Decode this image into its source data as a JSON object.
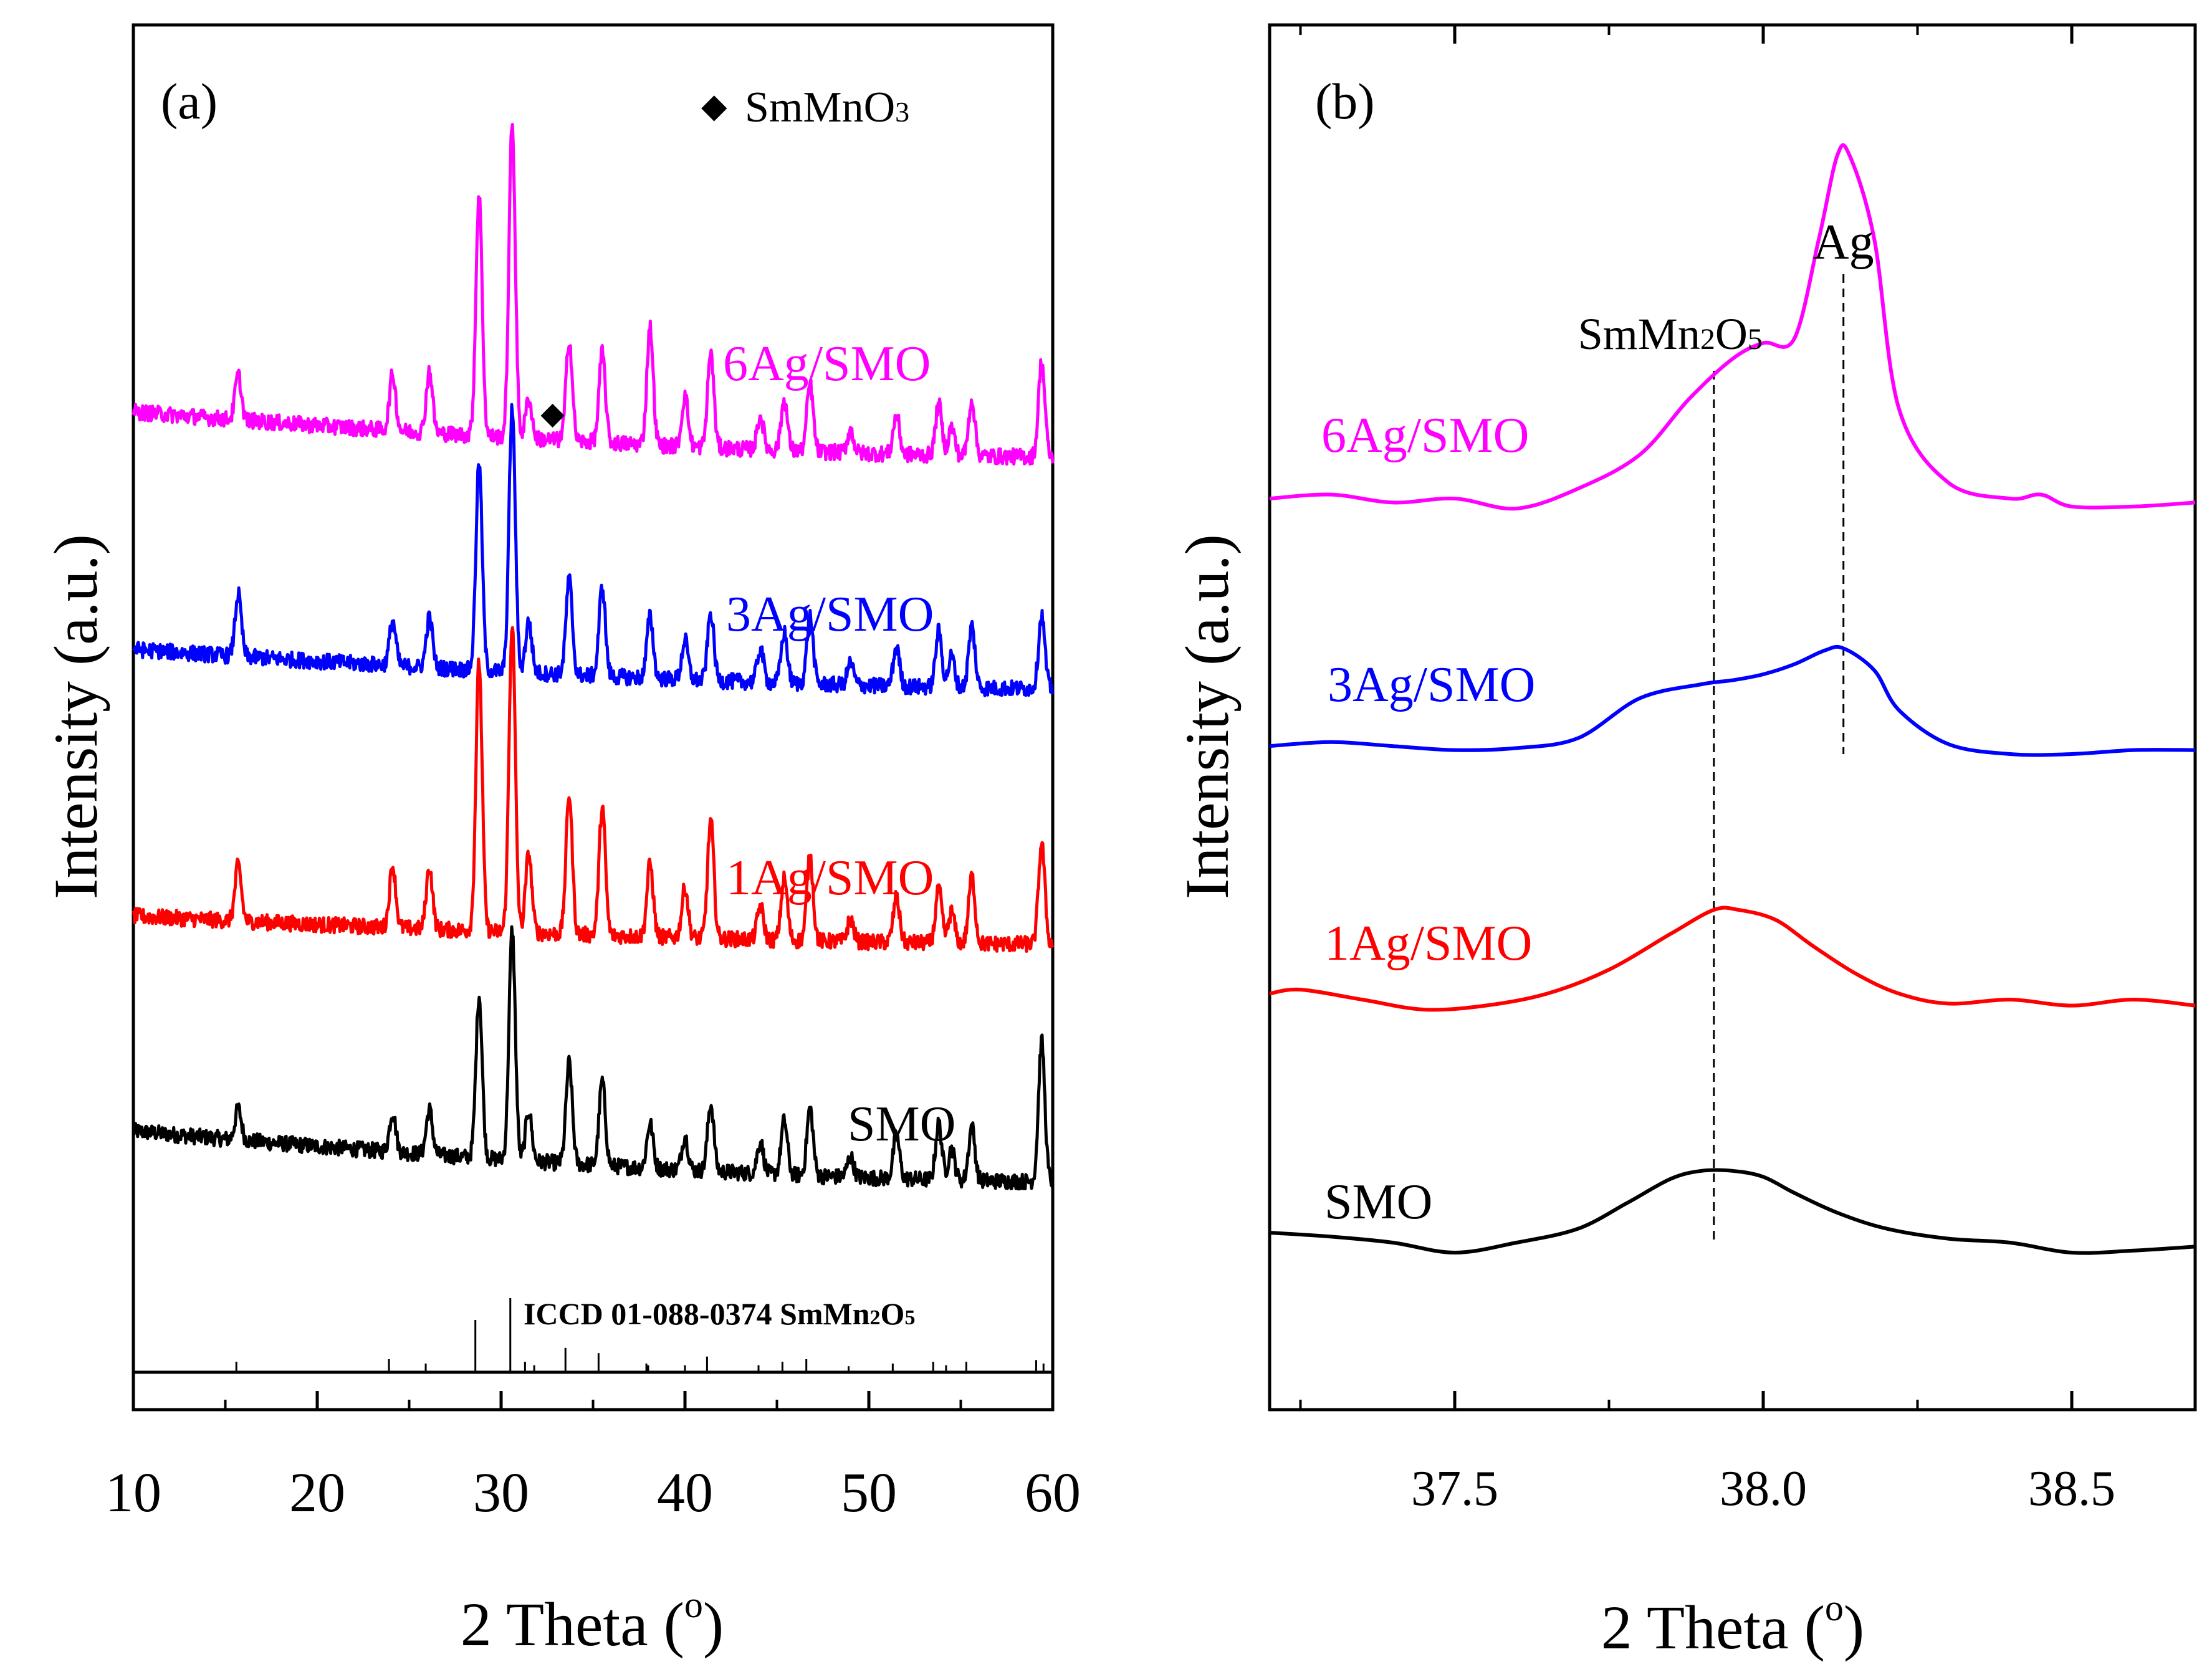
{
  "chart_data": [
    {
      "panel": "(a)",
      "type": "line",
      "title": "",
      "xlabel": "2 Theta (o)",
      "xlabel_main": "2 Theta (",
      "xlabel_sup": "o",
      "xlabel_close": ")",
      "ylabel": "Intensity (a.u.)",
      "xlim": [
        10,
        60
      ],
      "xticks": [
        "10",
        "20",
        "30",
        "40",
        "50",
        "60"
      ],
      "xtick_values": [
        10,
        20,
        30,
        40,
        50,
        60
      ],
      "legend": {
        "marker": "◆",
        "label_main": "SmMnO",
        "label_sub": "3",
        "placement": "top-right"
      },
      "marker_annotation": {
        "symbol": "◆",
        "x": 32.8
      },
      "reference": {
        "label": "ICCD 01-088-0374 SmMn2O5",
        "label_main": "ICCD 01-088-0374 SmMn",
        "label_sub1": "2",
        "label_o": "O",
        "label_sub2": "5",
        "sticks": [
          {
            "x": 15.6,
            "h": 0.12
          },
          {
            "x": 23.9,
            "h": 0.15
          },
          {
            "x": 25.9,
            "h": 0.1
          },
          {
            "x": 28.6,
            "h": 0.6
          },
          {
            "x": 30.5,
            "h": 0.85
          },
          {
            "x": 31.3,
            "h": 0.12
          },
          {
            "x": 31.8,
            "h": 0.08
          },
          {
            "x": 33.5,
            "h": 0.28
          },
          {
            "x": 35.3,
            "h": 0.22
          },
          {
            "x": 37.9,
            "h": 0.1
          },
          {
            "x": 38.0,
            "h": 0.08
          },
          {
            "x": 40.0,
            "h": 0.08
          },
          {
            "x": 41.2,
            "h": 0.18
          },
          {
            "x": 44.0,
            "h": 0.08
          },
          {
            "x": 45.3,
            "h": 0.12
          },
          {
            "x": 46.6,
            "h": 0.15
          },
          {
            "x": 48.9,
            "h": 0.07
          },
          {
            "x": 51.3,
            "h": 0.1
          },
          {
            "x": 53.5,
            "h": 0.12
          },
          {
            "x": 54.2,
            "h": 0.08
          },
          {
            "x": 55.3,
            "h": 0.12
          },
          {
            "x": 59.1,
            "h": 0.14
          },
          {
            "x": 59.5,
            "h": 0.1
          }
        ]
      },
      "peak_positions": [
        15.7,
        24.1,
        26.1,
        28.8,
        30.6,
        31.5,
        33.7,
        35.5,
        38.1,
        40.0,
        41.4,
        44.1,
        45.4,
        46.8,
        49.0,
        51.5,
        53.8,
        54.5,
        55.6,
        59.4
      ],
      "series": [
        {
          "name": "SMO",
          "color": "#000000",
          "baseline_start": 0.75,
          "baseline_end": 0.3,
          "noise": 0.14,
          "peak_heights": [
            0.28,
            0.35,
            0.4,
            1.45,
            2.05,
            0.45,
            0.9,
            0.75,
            0.4,
            0.3,
            0.6,
            0.28,
            0.48,
            0.6,
            0.18,
            0.38,
            0.5,
            0.28,
            0.48,
            1.25
          ]
        },
        {
          "name": "1Ag/SMO",
          "color": "#ff0000",
          "baseline_start": 0.5,
          "baseline_end": 0.25,
          "noise": 0.14,
          "peak_heights": [
            0.5,
            0.55,
            0.55,
            2.4,
            2.75,
            0.7,
            1.25,
            1.15,
            0.65,
            0.45,
            1.05,
            0.3,
            0.55,
            0.75,
            0.2,
            0.4,
            0.48,
            0.28,
            0.6,
            0.9
          ]
        },
        {
          "name": "3Ag/SMO",
          "color": "#0000ff",
          "baseline_start": 0.6,
          "baseline_end": 0.25,
          "noise": 0.14,
          "peak_heights": [
            0.55,
            0.4,
            0.45,
            1.85,
            2.35,
            0.45,
            0.85,
            0.8,
            0.55,
            0.35,
            0.6,
            0.3,
            0.45,
            0.6,
            0.2,
            0.35,
            0.5,
            0.28,
            0.55,
            0.65
          ]
        },
        {
          "name": "6Ag/SMO",
          "color": "#ff00ff",
          "baseline_start": 0.55,
          "baseline_end": 0.15,
          "noise": 0.14,
          "peak_heights": [
            0.4,
            0.5,
            0.55,
            2.15,
            2.8,
            0.35,
            0.9,
            0.8,
            1.05,
            0.45,
            0.85,
            0.3,
            0.45,
            0.6,
            0.2,
            0.35,
            0.45,
            0.25,
            0.5,
            0.85
          ]
        }
      ]
    },
    {
      "panel": "(b)",
      "type": "line",
      "title": "",
      "xlabel": "2 Theta (o)",
      "xlabel_main": "2 Theta (",
      "xlabel_sup": "o",
      "xlabel_close": ")",
      "ylabel": "Intensity (a.u.)",
      "xlim": [
        37.2,
        38.7
      ],
      "xticks": [
        "37.5",
        "38.0",
        "38.5"
      ],
      "xtick_values": [
        37.5,
        38.0,
        38.5
      ],
      "minor_xticks": [
        37.25,
        37.75,
        38.25
      ],
      "annotations": [
        {
          "label": "SmMn2O5",
          "label_main": "SmMn",
          "label_sub1": "2",
          "label_o": "O",
          "label_sub2": "5",
          "x": 37.92
        },
        {
          "label": "Ag",
          "x": 38.13
        }
      ],
      "series": [
        {
          "name": "SMO",
          "color": "#000000",
          "points": [
            [
              37.2,
              0.1
            ],
            [
              37.3,
              0.08
            ],
            [
              37.4,
              0.05
            ],
            [
              37.5,
              0.0
            ],
            [
              37.6,
              0.05
            ],
            [
              37.7,
              0.12
            ],
            [
              37.78,
              0.25
            ],
            [
              37.85,
              0.37
            ],
            [
              37.9,
              0.41
            ],
            [
              37.95,
              0.41
            ],
            [
              38.0,
              0.38
            ],
            [
              38.05,
              0.3
            ],
            [
              38.12,
              0.2
            ],
            [
              38.2,
              0.12
            ],
            [
              38.3,
              0.07
            ],
            [
              38.4,
              0.05
            ],
            [
              38.5,
              0.0
            ],
            [
              38.6,
              0.01
            ],
            [
              38.7,
              0.03
            ]
          ]
        },
        {
          "name": "1Ag/SMO",
          "color": "#ff0000",
          "points": [
            [
              37.2,
              0.08
            ],
            [
              37.25,
              0.1
            ],
            [
              37.35,
              0.05
            ],
            [
              37.45,
              0.0
            ],
            [
              37.55,
              0.02
            ],
            [
              37.65,
              0.08
            ],
            [
              37.75,
              0.2
            ],
            [
              37.85,
              0.38
            ],
            [
              37.92,
              0.5
            ],
            [
              37.96,
              0.5
            ],
            [
              38.02,
              0.45
            ],
            [
              38.08,
              0.32
            ],
            [
              38.15,
              0.18
            ],
            [
              38.22,
              0.08
            ],
            [
              38.3,
              0.03
            ],
            [
              38.4,
              0.05
            ],
            [
              38.5,
              0.02
            ],
            [
              38.6,
              0.05
            ],
            [
              38.7,
              0.02
            ]
          ]
        },
        {
          "name": "3Ag/SMO",
          "color": "#0000ff",
          "points": [
            [
              37.2,
              0.04
            ],
            [
              37.3,
              0.06
            ],
            [
              37.4,
              0.04
            ],
            [
              37.5,
              0.02
            ],
            [
              37.6,
              0.03
            ],
            [
              37.7,
              0.08
            ],
            [
              37.8,
              0.28
            ],
            [
              37.9,
              0.35
            ],
            [
              37.95,
              0.37
            ],
            [
              38.0,
              0.4
            ],
            [
              38.05,
              0.45
            ],
            [
              38.1,
              0.52
            ],
            [
              38.13,
              0.53
            ],
            [
              38.18,
              0.42
            ],
            [
              38.22,
              0.22
            ],
            [
              38.3,
              0.05
            ],
            [
              38.4,
              0.0
            ],
            [
              38.5,
              0.0
            ],
            [
              38.6,
              0.02
            ],
            [
              38.7,
              0.02
            ]
          ]
        },
        {
          "name": "6Ag/SMO",
          "color": "#ff00ff",
          "points": [
            [
              37.2,
              0.0
            ],
            [
              37.3,
              0.02
            ],
            [
              37.4,
              -0.02
            ],
            [
              37.5,
              0.0
            ],
            [
              37.6,
              -0.05
            ],
            [
              37.7,
              0.05
            ],
            [
              37.8,
              0.22
            ],
            [
              37.88,
              0.5
            ],
            [
              37.95,
              0.7
            ],
            [
              38.0,
              0.78
            ],
            [
              38.05,
              0.8
            ],
            [
              38.09,
              1.3
            ],
            [
              38.12,
              1.72
            ],
            [
              38.14,
              1.72
            ],
            [
              38.18,
              1.3
            ],
            [
              38.22,
              0.45
            ],
            [
              38.3,
              0.08
            ],
            [
              38.4,
              0.0
            ],
            [
              38.45,
              0.02
            ],
            [
              38.5,
              -0.04
            ],
            [
              38.6,
              -0.04
            ],
            [
              38.7,
              -0.02
            ]
          ]
        }
      ]
    }
  ]
}
